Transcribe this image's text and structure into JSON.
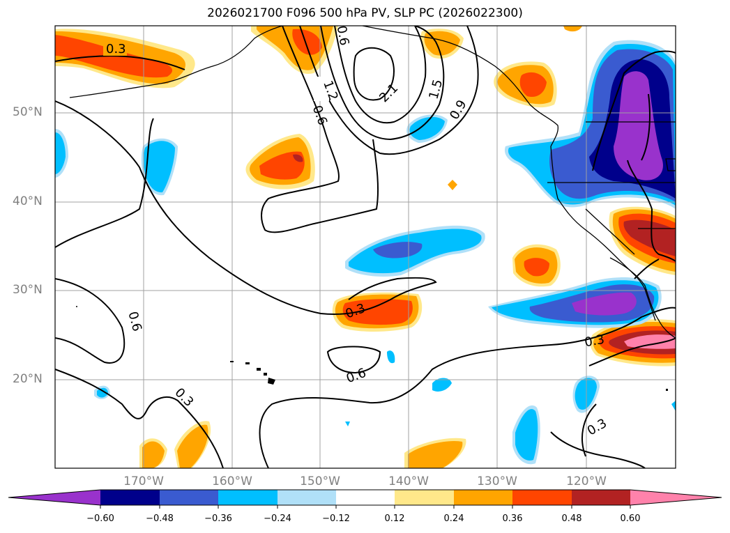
{
  "title": "2026021700 F096 500 hPa PV, SLP PC (2026022300)",
  "map": {
    "lat_labels": [
      "50°N",
      "40°N",
      "30°N",
      "20°N"
    ],
    "lon_labels": [
      "170°W",
      "160°W",
      "150°W",
      "140°W",
      "130°W",
      "120°W"
    ],
    "contour_labels": [
      "0.3",
      "1.2",
      "0.6",
      "2.1",
      "1.5",
      "0.9",
      "0.6",
      "0.3",
      "0.6",
      "0.3",
      "0.3",
      "0.3",
      "0.6"
    ]
  },
  "colorbar": {
    "ticks": [
      "−0.60",
      "−0.48",
      "−0.36",
      "−0.24",
      "−0.12",
      "0.12",
      "0.24",
      "0.36",
      "0.48",
      "0.60"
    ],
    "colors": [
      "#9932cc",
      "#00008b",
      "#3a5bd0",
      "#00bfff",
      "#b0e0f8",
      "#ffffff",
      "#ffe88a",
      "#ffa500",
      "#ff4500",
      "#b22222",
      "#ff82ab"
    ]
  }
}
